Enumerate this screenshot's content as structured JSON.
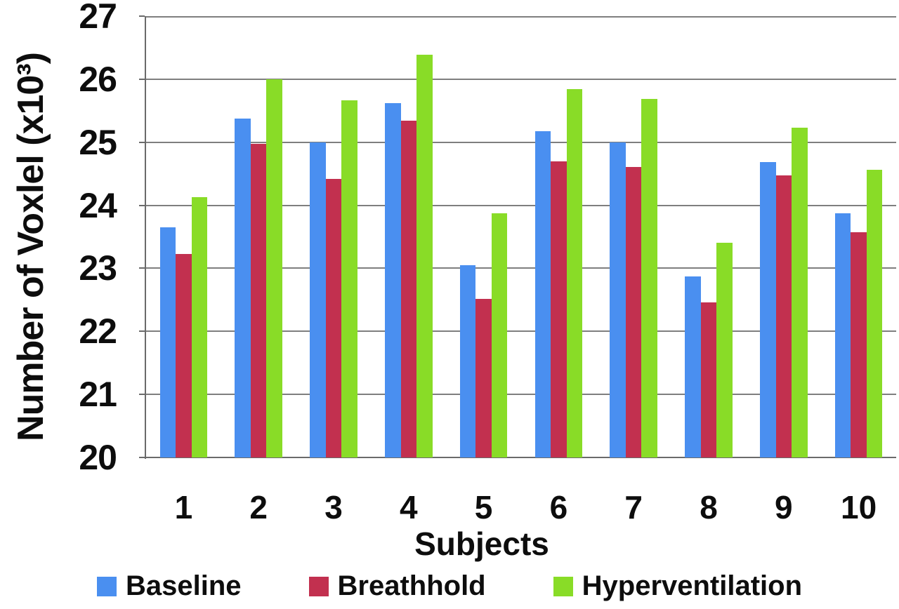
{
  "chart_data": {
    "type": "bar",
    "title": "",
    "categories": [
      "1",
      "2",
      "3",
      "4",
      "5",
      "6",
      "7",
      "8",
      "9",
      "10"
    ],
    "series": [
      {
        "name": "Baseline",
        "color": "#4a8ff0",
        "values": [
          23.65,
          25.38,
          25.0,
          25.62,
          23.05,
          25.18,
          25.0,
          22.87,
          24.68,
          23.87
        ]
      },
      {
        "name": "Breathhold",
        "color": "#c2304f",
        "values": [
          23.23,
          24.97,
          24.42,
          25.34,
          22.52,
          24.7,
          24.61,
          22.46,
          24.47,
          23.57
        ]
      },
      {
        "name": "Hyperventilation",
        "color": "#89dc27",
        "values": [
          24.13,
          26.0,
          25.67,
          26.39,
          23.87,
          25.84,
          25.69,
          23.41,
          25.23,
          24.56
        ]
      }
    ],
    "xlabel": "Subjects",
    "ylabel": "Number of Voxlel (x10³)",
    "ylim": [
      20,
      27
    ],
    "yticks": [
      20,
      21,
      22,
      23,
      24,
      25,
      26,
      27
    ],
    "ytick_step": 1,
    "grid": true,
    "legend_position": "bottom",
    "gridline_color": "#7f7f7f",
    "axis_color": "#6a6a6a",
    "text_color": "#0d0d0d",
    "background_color": "#ffffff"
  }
}
